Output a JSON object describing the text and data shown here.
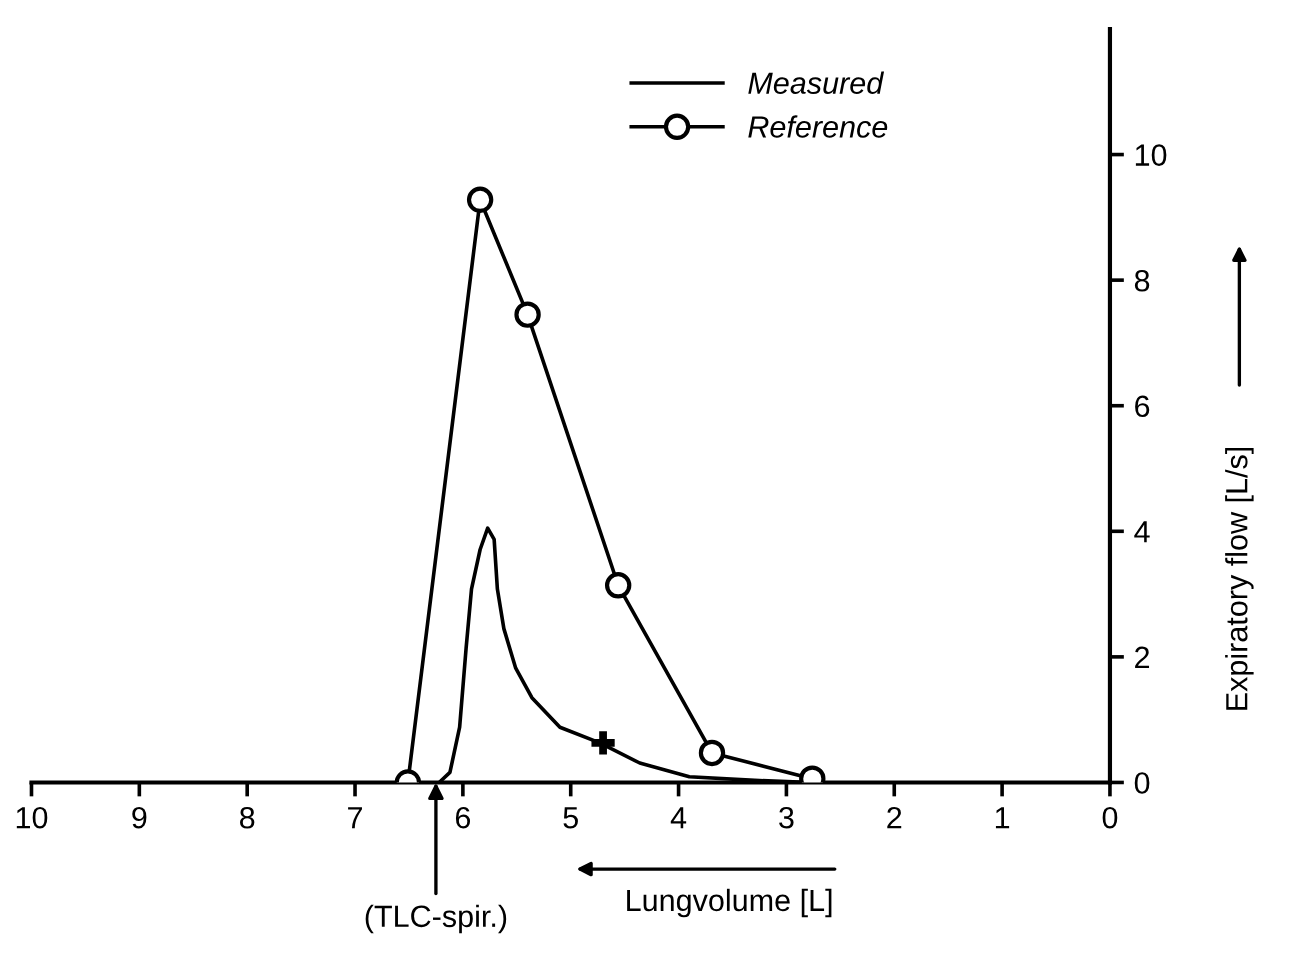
{
  "chart_data": {
    "type": "line",
    "xlabel": "Lungvolume [L]",
    "ylabel": "Expiratory flow [L/s]",
    "xlim": [
      10,
      0
    ],
    "xticks": [
      10,
      9,
      8,
      7,
      6,
      5,
      4,
      3,
      2,
      1,
      0
    ],
    "ylim": [
      0,
      12
    ],
    "yticks": [
      0,
      2,
      4,
      6,
      8,
      10
    ],
    "annotations": [
      {
        "text": "(TLC-spir.)",
        "x": 6.25,
        "y": 0
      }
    ],
    "legend": "top right",
    "grid": false,
    "series": [
      {
        "name": "Measured",
        "color": "#000000",
        "marker": "none",
        "x": [
          6.22,
          6.12,
          6.03,
          5.97,
          5.92,
          5.84,
          5.77,
          5.71,
          5.68,
          5.62,
          5.51,
          5.36,
          5.1,
          4.73,
          4.36,
          3.9,
          3.25,
          2.78
        ],
        "values": [
          0,
          0.16,
          0.88,
          2.14,
          3.08,
          3.71,
          4.05,
          3.87,
          3.08,
          2.45,
          1.82,
          1.35,
          0.88,
          0.63,
          0.31,
          0.09,
          0.03,
          0
        ]
      },
      {
        "name": "Reference",
        "color": "#000000",
        "marker": "circle",
        "x": [
          6.51,
          5.84,
          5.4,
          4.56,
          3.69,
          2.76
        ],
        "values": [
          0,
          9.28,
          7.45,
          3.14,
          0.47,
          0.06
        ]
      },
      {
        "type": "scatter",
        "color": "#000000",
        "marker": "cross",
        "x": [
          4.7
        ],
        "values": [
          0.63
        ]
      }
    ]
  }
}
